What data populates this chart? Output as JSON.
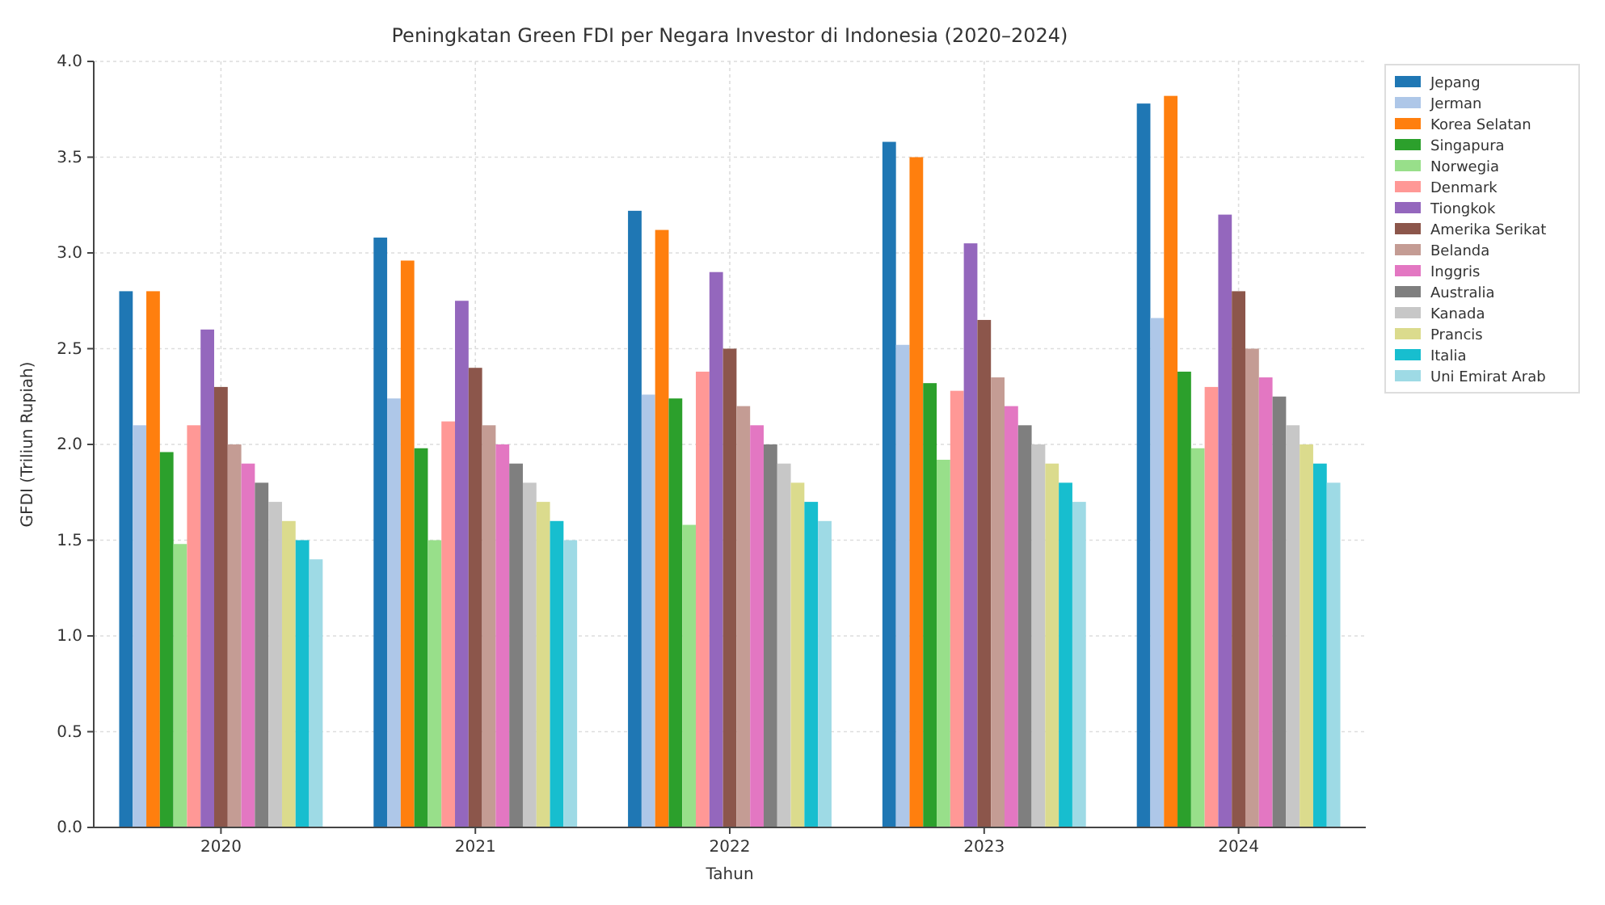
{
  "chart_data": {
    "type": "bar",
    "title": "Peningkatan Green FDI per Negara Investor di Indonesia (2020–2024)",
    "xlabel": "Tahun",
    "ylabel": "GFDI (Triliun Rupiah)",
    "categories": [
      "2020",
      "2021",
      "2022",
      "2023",
      "2024"
    ],
    "series": [
      {
        "name": "Jepang",
        "color": "#1f77b4",
        "values": [
          2.8,
          3.08,
          3.22,
          3.58,
          3.78
        ]
      },
      {
        "name": "Jerman",
        "color": "#aec7e8",
        "values": [
          2.1,
          2.24,
          2.26,
          2.52,
          2.66
        ]
      },
      {
        "name": "Korea Selatan",
        "color": "#ff7f0e",
        "values": [
          2.8,
          2.96,
          3.12,
          3.5,
          3.82
        ]
      },
      {
        "name": "Singapura",
        "color": "#2ca02c",
        "values": [
          1.96,
          1.98,
          2.24,
          2.32,
          2.38
        ]
      },
      {
        "name": "Norwegia",
        "color": "#98df8a",
        "values": [
          1.48,
          1.5,
          1.58,
          1.92,
          1.98
        ]
      },
      {
        "name": "Denmark",
        "color": "#ff9896",
        "values": [
          2.1,
          2.12,
          2.38,
          2.28,
          2.3
        ]
      },
      {
        "name": "Tiongkok",
        "color": "#9467bd",
        "values": [
          2.6,
          2.75,
          2.9,
          3.05,
          3.2
        ]
      },
      {
        "name": "Amerika Serikat",
        "color": "#8c564b",
        "values": [
          2.3,
          2.4,
          2.5,
          2.65,
          2.8
        ]
      },
      {
        "name": "Belanda",
        "color": "#c49c94",
        "values": [
          2.0,
          2.1,
          2.2,
          2.35,
          2.5
        ]
      },
      {
        "name": "Inggris",
        "color": "#e377c2",
        "values": [
          1.9,
          2.0,
          2.1,
          2.2,
          2.35
        ]
      },
      {
        "name": "Australia",
        "color": "#7f7f7f",
        "values": [
          1.8,
          1.9,
          2.0,
          2.1,
          2.25
        ]
      },
      {
        "name": "Kanada",
        "color": "#c7c7c7",
        "values": [
          1.7,
          1.8,
          1.9,
          2.0,
          2.1
        ]
      },
      {
        "name": "Prancis",
        "color": "#dbdb8d",
        "values": [
          1.6,
          1.7,
          1.8,
          1.9,
          2.0
        ]
      },
      {
        "name": "Italia",
        "color": "#17becf",
        "values": [
          1.5,
          1.6,
          1.7,
          1.8,
          1.9
        ]
      },
      {
        "name": "Uni Emirat Arab",
        "color": "#9edae5",
        "values": [
          1.4,
          1.5,
          1.6,
          1.7,
          1.8
        ]
      }
    ],
    "ylim": [
      0,
      4
    ],
    "yticks": [
      {
        "value": 0,
        "label": "0.0"
      },
      0.5,
      {
        "value": 1,
        "label": "1.0"
      },
      1.5,
      {
        "value": 2,
        "label": "2.0"
      },
      2.5,
      {
        "value": 3,
        "label": "3.0"
      },
      3.5,
      {
        "value": 4,
        "label": "4.0"
      }
    ],
    "grid": true,
    "legend": "top right"
  }
}
